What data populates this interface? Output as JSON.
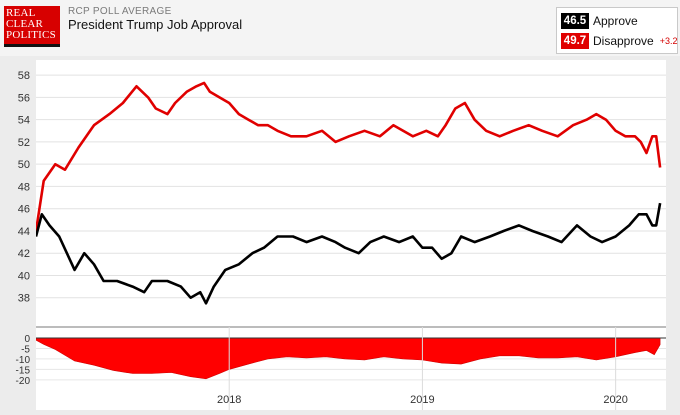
{
  "header": {
    "logo_lines": [
      "REAL",
      "CLEAR",
      "POLITICS"
    ],
    "subtitle": "RCP POLL AVERAGE",
    "title": "President Trump Job Approval"
  },
  "legend": {
    "approve_value": "46.5",
    "approve_label": "Approve",
    "disapprove_value": "49.7",
    "disapprove_label": "Disapprove",
    "disapprove_spread": "+3.2"
  },
  "colors": {
    "approve": "#000000",
    "disapprove": "#e00000",
    "spread": "#ff0000"
  },
  "chart_data": {
    "type": "line",
    "title": "President Trump Job Approval",
    "x_start": "2017-01",
    "x_end": "2020-03",
    "x_ticks": [
      {
        "label": "2018",
        "t": 1.0
      },
      {
        "label": "2019",
        "t": 2.0
      },
      {
        "label": "2020",
        "t": 3.0
      }
    ],
    "ylim": [
      36,
      59
    ],
    "y_ticks": [
      38,
      40,
      42,
      44,
      46,
      48,
      50,
      52,
      54,
      56,
      58
    ],
    "series": [
      {
        "name": "Disapprove",
        "color": "#e00000",
        "points": [
          [
            0.0,
            44.0
          ],
          [
            0.04,
            48.5
          ],
          [
            0.1,
            50.0
          ],
          [
            0.15,
            49.5
          ],
          [
            0.22,
            51.5
          ],
          [
            0.3,
            53.5
          ],
          [
            0.38,
            54.5
          ],
          [
            0.45,
            55.5
          ],
          [
            0.52,
            57.0
          ],
          [
            0.58,
            56.0
          ],
          [
            0.62,
            55.0
          ],
          [
            0.68,
            54.5
          ],
          [
            0.72,
            55.5
          ],
          [
            0.78,
            56.5
          ],
          [
            0.83,
            57.0
          ],
          [
            0.87,
            57.3
          ],
          [
            0.9,
            56.5
          ],
          [
            0.95,
            56.0
          ],
          [
            1.0,
            55.5
          ],
          [
            1.05,
            54.5
          ],
          [
            1.1,
            54.0
          ],
          [
            1.15,
            53.5
          ],
          [
            1.2,
            53.5
          ],
          [
            1.25,
            53.0
          ],
          [
            1.32,
            52.5
          ],
          [
            1.4,
            52.5
          ],
          [
            1.48,
            53.0
          ],
          [
            1.55,
            52.0
          ],
          [
            1.62,
            52.5
          ],
          [
            1.7,
            53.0
          ],
          [
            1.78,
            52.5
          ],
          [
            1.85,
            53.5
          ],
          [
            1.9,
            53.0
          ],
          [
            1.95,
            52.5
          ],
          [
            2.02,
            53.0
          ],
          [
            2.08,
            52.5
          ],
          [
            2.12,
            53.5
          ],
          [
            2.17,
            55.0
          ],
          [
            2.22,
            55.5
          ],
          [
            2.27,
            54.0
          ],
          [
            2.33,
            53.0
          ],
          [
            2.4,
            52.5
          ],
          [
            2.47,
            53.0
          ],
          [
            2.55,
            53.5
          ],
          [
            2.62,
            53.0
          ],
          [
            2.7,
            52.5
          ],
          [
            2.78,
            53.5
          ],
          [
            2.85,
            54.0
          ],
          [
            2.9,
            54.5
          ],
          [
            2.95,
            54.0
          ],
          [
            3.0,
            53.0
          ],
          [
            3.05,
            52.5
          ],
          [
            3.1,
            52.5
          ],
          [
            3.13,
            52.0
          ],
          [
            3.16,
            51.0
          ],
          [
            3.19,
            52.5
          ],
          [
            3.21,
            52.5
          ],
          [
            3.23,
            49.7
          ]
        ]
      },
      {
        "name": "Approve",
        "color": "#000000",
        "points": [
          [
            0.0,
            43.5
          ],
          [
            0.03,
            45.5
          ],
          [
            0.07,
            44.5
          ],
          [
            0.12,
            43.5
          ],
          [
            0.16,
            42.0
          ],
          [
            0.2,
            40.5
          ],
          [
            0.25,
            42.0
          ],
          [
            0.3,
            41.0
          ],
          [
            0.35,
            39.5
          ],
          [
            0.42,
            39.5
          ],
          [
            0.5,
            39.0
          ],
          [
            0.56,
            38.5
          ],
          [
            0.6,
            39.5
          ],
          [
            0.68,
            39.5
          ],
          [
            0.75,
            39.0
          ],
          [
            0.8,
            38.0
          ],
          [
            0.85,
            38.5
          ],
          [
            0.88,
            37.5
          ],
          [
            0.92,
            39.0
          ],
          [
            0.98,
            40.5
          ],
          [
            1.05,
            41.0
          ],
          [
            1.12,
            42.0
          ],
          [
            1.18,
            42.5
          ],
          [
            1.25,
            43.5
          ],
          [
            1.33,
            43.5
          ],
          [
            1.4,
            43.0
          ],
          [
            1.48,
            43.5
          ],
          [
            1.55,
            43.0
          ],
          [
            1.6,
            42.5
          ],
          [
            1.67,
            42.0
          ],
          [
            1.73,
            43.0
          ],
          [
            1.8,
            43.5
          ],
          [
            1.88,
            43.0
          ],
          [
            1.95,
            43.5
          ],
          [
            2.0,
            42.5
          ],
          [
            2.05,
            42.5
          ],
          [
            2.1,
            41.5
          ],
          [
            2.15,
            42.0
          ],
          [
            2.2,
            43.5
          ],
          [
            2.27,
            43.0
          ],
          [
            2.35,
            43.5
          ],
          [
            2.42,
            44.0
          ],
          [
            2.5,
            44.5
          ],
          [
            2.57,
            44.0
          ],
          [
            2.65,
            43.5
          ],
          [
            2.72,
            43.0
          ],
          [
            2.8,
            44.5
          ],
          [
            2.87,
            43.5
          ],
          [
            2.93,
            43.0
          ],
          [
            3.0,
            43.5
          ],
          [
            3.07,
            44.5
          ],
          [
            3.12,
            45.5
          ],
          [
            3.16,
            45.5
          ],
          [
            3.19,
            44.5
          ],
          [
            3.21,
            44.5
          ],
          [
            3.23,
            46.5
          ]
        ]
      }
    ],
    "spread": {
      "name": "Spread",
      "ylim": [
        -22,
        0
      ],
      "y_ticks": [
        0,
        -5,
        -10,
        -15,
        -20
      ],
      "y_tick_labels": [
        "0",
        "-5",
        "-10",
        "-15",
        "-20"
      ],
      "points": [
        [
          0.0,
          -1.0
        ],
        [
          0.04,
          -3.0
        ],
        [
          0.1,
          -5.5
        ],
        [
          0.2,
          -11.0
        ],
        [
          0.3,
          -13.0
        ],
        [
          0.4,
          -15.5
        ],
        [
          0.5,
          -17.0
        ],
        [
          0.6,
          -17.0
        ],
        [
          0.7,
          -16.5
        ],
        [
          0.8,
          -18.5
        ],
        [
          0.88,
          -19.5
        ],
        [
          0.95,
          -17.0
        ],
        [
          1.0,
          -15.0
        ],
        [
          1.1,
          -12.5
        ],
        [
          1.2,
          -10.0
        ],
        [
          1.3,
          -9.0
        ],
        [
          1.4,
          -9.5
        ],
        [
          1.5,
          -9.0
        ],
        [
          1.6,
          -10.0
        ],
        [
          1.7,
          -10.5
        ],
        [
          1.8,
          -9.0
        ],
        [
          1.9,
          -10.0
        ],
        [
          2.0,
          -10.5
        ],
        [
          2.1,
          -12.0
        ],
        [
          2.2,
          -12.5
        ],
        [
          2.3,
          -10.0
        ],
        [
          2.4,
          -8.5
        ],
        [
          2.5,
          -8.5
        ],
        [
          2.6,
          -9.5
        ],
        [
          2.7,
          -9.5
        ],
        [
          2.8,
          -9.0
        ],
        [
          2.9,
          -10.5
        ],
        [
          3.0,
          -9.0
        ],
        [
          3.1,
          -7.0
        ],
        [
          3.16,
          -6.0
        ],
        [
          3.2,
          -8.0
        ],
        [
          3.23,
          -3.2
        ]
      ]
    }
  }
}
